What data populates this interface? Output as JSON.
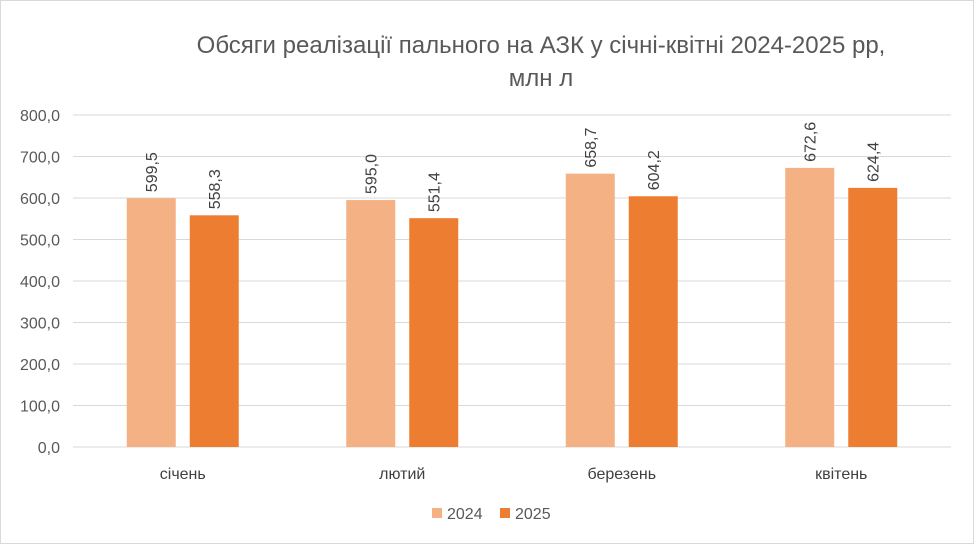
{
  "chart_data": {
    "type": "bar",
    "title": "Обсяги реалізації пального на АЗК у січні-квітні 2024-2025 рр, млн л",
    "title_lines": [
      "Обсяги реалізації пального на АЗК у січні-квітні 2024-2025 рр,",
      "млн л"
    ],
    "categories": [
      "січень",
      "лютий",
      "березень",
      "квітень"
    ],
    "series": [
      {
        "name": "2024",
        "color": "#F4B183",
        "values": [
          599.5,
          595.0,
          658.7,
          672.6
        ],
        "labels": [
          "599,5",
          "595,0",
          "658,7",
          "672,6"
        ]
      },
      {
        "name": "2025",
        "color": "#ED7D31",
        "values": [
          558.3,
          551.4,
          604.2,
          624.4
        ],
        "labels": [
          "558,3",
          "551,4",
          "604,2",
          "624,4"
        ]
      }
    ],
    "ylim": [
      0,
      800
    ],
    "yticks": [
      0,
      100,
      200,
      300,
      400,
      500,
      600,
      700,
      800
    ],
    "ytick_labels": [
      "0,0",
      "100,0",
      "200,0",
      "300,0",
      "400,0",
      "500,0",
      "600,0",
      "700,0",
      "800,0"
    ],
    "xlabel": "",
    "ylabel": "",
    "grid": true,
    "legend_position": "bottom",
    "gridline_color": "#d9d9d9"
  }
}
